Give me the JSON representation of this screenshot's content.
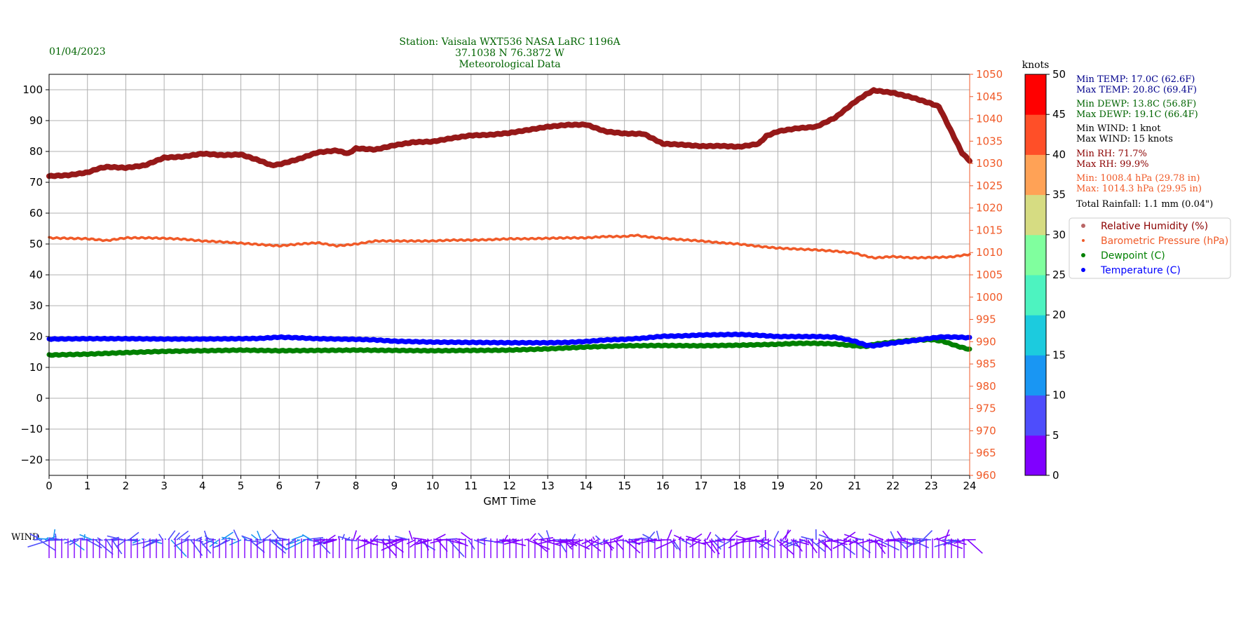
{
  "header": {
    "date": "01/04/2023",
    "station_line": "Station:  Vaisala WXT536  NASA LaRC 1196A",
    "coords_line": "37.1038 N 76.3872 W",
    "subtitle": "Meteorological Data"
  },
  "stats": [
    {
      "text": "Min TEMP: 17.0C (62.6F)",
      "color": "#00008b"
    },
    {
      "text": "Max TEMP: 20.8C (69.4F)",
      "color": "#00008b"
    },
    {
      "text": "Min DEWP: 13.8C (56.8F)",
      "color": "#006400"
    },
    {
      "text": "Max DEWP: 19.1C (66.4F)",
      "color": "#006400"
    },
    {
      "text": "Min WIND: 1 knot",
      "color": "#000000"
    },
    {
      "text": "Max WIND: 15 knots",
      "color": "#000000"
    },
    {
      "text": "Min RH: 71.7%",
      "color": "#8b0000"
    },
    {
      "text": "Max RH: 99.9%",
      "color": "#8b0000"
    },
    {
      "text": "Min: 1008.4 hPa (29.78 in)",
      "color": "#f05a28"
    },
    {
      "text": "Max: 1014.3 hPa (29.95 in)",
      "color": "#f05a28"
    },
    {
      "text": "Total Rainfall: 1.1 mm (0.04\")",
      "color": "#000000"
    }
  ],
  "colorbar": {
    "label": "knots",
    "ticks": [
      0,
      5,
      10,
      15,
      20,
      25,
      30,
      35,
      40,
      45,
      50
    ],
    "colors": [
      "#8000ff",
      "#4e4dfc",
      "#1996f3",
      "#1ccbde",
      "#4df3c0",
      "#80ff9e",
      "#d6dc82",
      "#ffa256",
      "#ff4f28",
      "#ff0000"
    ]
  },
  "wind_label": "WIND",
  "chart_data": {
    "type": "line",
    "xlabel": "GMT Time",
    "xlim": [
      0,
      24
    ],
    "x_ticks": [
      0,
      1,
      2,
      3,
      4,
      5,
      6,
      7,
      8,
      9,
      10,
      11,
      12,
      13,
      14,
      15,
      16,
      17,
      18,
      19,
      20,
      21,
      22,
      23,
      24
    ],
    "left_axis": {
      "ylim": [
        -25,
        105
      ],
      "ticks": [
        -20,
        -10,
        0,
        10,
        20,
        30,
        40,
        50,
        60,
        70,
        80,
        90,
        100
      ],
      "color": "#000000"
    },
    "right_axis": {
      "ylim": [
        960,
        1050
      ],
      "ticks": [
        960,
        965,
        970,
        975,
        980,
        985,
        990,
        995,
        1000,
        1005,
        1010,
        1015,
        1020,
        1025,
        1030,
        1035,
        1040,
        1045,
        1050
      ],
      "color": "#f05a28"
    },
    "grid": true,
    "legend_position": "right",
    "series": [
      {
        "name": "Relative Humidity (%)",
        "axis": "left",
        "color": "#8b0000",
        "marker": "big-dot",
        "x": [
          0,
          0.5,
          1,
          1.3,
          1.5,
          2,
          2.5,
          3,
          3.5,
          4,
          4.5,
          5,
          5.5,
          5.8,
          6,
          6.5,
          7,
          7.5,
          7.8,
          8,
          8.5,
          9,
          9.5,
          10,
          10.5,
          11,
          11.5,
          12,
          12.5,
          13,
          13.5,
          14,
          14.5,
          15,
          15.5,
          16,
          16.5,
          17,
          17.5,
          18,
          18.5,
          18.7,
          19,
          19.5,
          20,
          20.5,
          21,
          21.3,
          21.5,
          22,
          22.5,
          23,
          23.2,
          23.5,
          23.8,
          24
        ],
        "y": [
          72,
          72.3,
          73.2,
          74.5,
          75,
          74.7,
          75.5,
          78,
          78.3,
          79.3,
          78.8,
          79,
          77,
          75.5,
          75.8,
          77.5,
          79.7,
          80.3,
          79.3,
          81,
          80.6,
          82,
          83,
          83.2,
          84.3,
          85.2,
          85.4,
          86,
          87,
          88,
          88.6,
          88.7,
          86.5,
          85.8,
          85.7,
          82.5,
          82.2,
          81.7,
          81.8,
          81.5,
          82.5,
          85,
          86.5,
          87.5,
          88,
          91,
          96,
          98.5,
          99.8,
          99,
          97.5,
          95.5,
          94.5,
          87,
          79.5,
          77
        ]
      },
      {
        "name": "Barometric Pressure (hPa)",
        "axis": "right",
        "color": "#f05a28",
        "marker": "small-dot",
        "x": [
          0,
          1,
          1.5,
          2,
          2.5,
          3,
          3.5,
          4,
          4.5,
          5,
          5.5,
          6,
          6.5,
          7,
          7.5,
          8,
          8.5,
          9,
          9.5,
          10,
          10.5,
          11,
          11.5,
          12,
          12.5,
          13,
          13.5,
          14,
          14.5,
          15,
          15.3,
          15.5,
          16,
          16.5,
          17,
          17.5,
          18,
          18.5,
          19,
          19.5,
          20,
          20.5,
          21,
          21.2,
          21.5,
          22,
          22.5,
          23,
          23.5,
          24
        ],
        "y": [
          1013.3,
          1013.1,
          1012.7,
          1013.3,
          1013.3,
          1013.2,
          1013,
          1012.6,
          1012.4,
          1012.1,
          1011.8,
          1011.5,
          1011.9,
          1012.2,
          1011.5,
          1011.9,
          1012.6,
          1012.6,
          1012.6,
          1012.6,
          1012.8,
          1012.8,
          1012.9,
          1013.1,
          1013.1,
          1013.2,
          1013.3,
          1013.3,
          1013.6,
          1013.6,
          1013.9,
          1013.6,
          1013.2,
          1012.9,
          1012.6,
          1012.2,
          1011.9,
          1011.4,
          1011,
          1010.8,
          1010.6,
          1010.3,
          1009.9,
          1009.4,
          1008.8,
          1009.1,
          1008.8,
          1008.9,
          1009,
          1009.6
        ]
      },
      {
        "name": "Dewpoint (C)",
        "axis": "left",
        "color": "#008000",
        "marker": "dot",
        "x": [
          0,
          1,
          2,
          3,
          4,
          5,
          6,
          7,
          8,
          9,
          10,
          11,
          12,
          13,
          14,
          15,
          16,
          17,
          18,
          19,
          19.5,
          20,
          20.5,
          21,
          21.3,
          21.5,
          22,
          22.5,
          23,
          23.3,
          23.7,
          24
        ],
        "y": [
          14,
          14.3,
          14.8,
          15.2,
          15.4,
          15.6,
          15.4,
          15.5,
          15.6,
          15.5,
          15.4,
          15.5,
          15.6,
          16,
          16.6,
          17,
          17.1,
          17,
          17.2,
          17.5,
          17.8,
          17.8,
          17.6,
          17,
          16.8,
          17.5,
          18.2,
          18.8,
          19,
          18.5,
          16.8,
          15.8
        ]
      },
      {
        "name": "Temperature (C)",
        "axis": "left",
        "color": "#0000ff",
        "marker": "dot",
        "x": [
          0,
          1,
          2,
          3,
          4,
          5,
          5.5,
          6,
          6.5,
          7,
          7.5,
          8,
          8.5,
          9,
          10,
          11,
          12,
          13,
          13.5,
          14,
          14.5,
          15,
          15.5,
          16,
          16.5,
          17,
          17.5,
          18,
          18.5,
          19,
          19.5,
          20,
          20.5,
          21,
          21.3,
          21.5,
          22,
          22.5,
          23,
          23.3,
          23.7,
          24
        ],
        "y": [
          19.2,
          19.3,
          19.3,
          19.2,
          19.2,
          19.3,
          19.4,
          19.8,
          19.6,
          19.3,
          19.2,
          19.1,
          18.9,
          18.5,
          18.2,
          18.1,
          18,
          18,
          18.1,
          18.4,
          18.9,
          19.1,
          19.5,
          20.1,
          20.2,
          20.5,
          20.6,
          20.7,
          20.4,
          20,
          20,
          20,
          19.8,
          18.5,
          17.2,
          17,
          17.9,
          18.6,
          19.5,
          19.9,
          19.8,
          19.6
        ]
      }
    ],
    "wind": {
      "type": "barbs",
      "description_points_hours": [
        0,
        1,
        2,
        3,
        4,
        5,
        6,
        7,
        7.5,
        8,
        9,
        10,
        11,
        12,
        13,
        14,
        15,
        16,
        17,
        18,
        19,
        20,
        21,
        21.5,
        22,
        23,
        24
      ]
    }
  }
}
